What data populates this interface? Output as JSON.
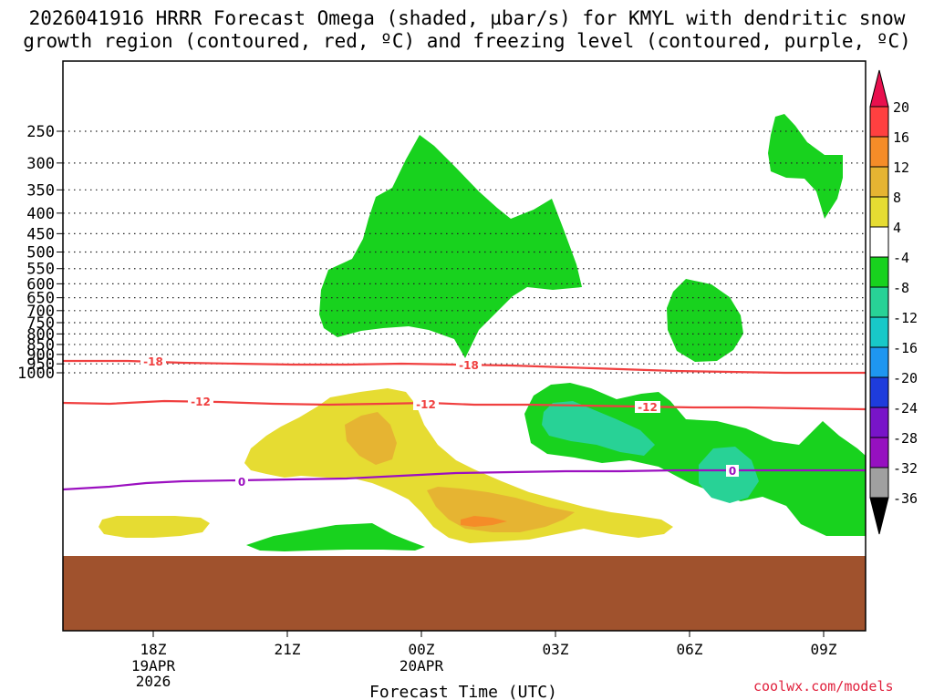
{
  "title_line1": "2026041916 HRRR Forecast Omega (shaded, µbar/s) for KMYL with dendritic snow",
  "title_line2": "growth region (contoured, red, ºC) and freezing level (contoured, purple, ºC)",
  "credit": "coolwx.com/models",
  "chart_data": {
    "type": "contour",
    "x_axis": {
      "label": "Forecast Time (UTC)",
      "ticks": [
        {
          "label": "18Z",
          "sub": [
            "19APR",
            "2026"
          ]
        },
        {
          "label": "21Z",
          "sub": []
        },
        {
          "label": "00Z",
          "sub": [
            "20APR"
          ]
        },
        {
          "label": "03Z",
          "sub": []
        },
        {
          "label": "06Z",
          "sub": []
        },
        {
          "label": "09Z",
          "sub": []
        }
      ]
    },
    "y_axis": {
      "ticks": [
        "250",
        "300",
        "350",
        "400",
        "450",
        "500",
        "550",
        "600",
        "650",
        "700",
        "750",
        "800",
        "850",
        "900",
        "950",
        "1000"
      ],
      "inverted": true,
      "grid": "dotted"
    },
    "colorbar": {
      "labels": [
        "20",
        "16",
        "12",
        "8",
        "4",
        "-4",
        "-8",
        "-12",
        "-16",
        "-20",
        "-24",
        "-28",
        "-32",
        "-36"
      ],
      "colors": [
        "#e8104e",
        "#ff4040",
        "#f58c28",
        "#e6b432",
        "#e6dc32",
        "#ffffff",
        "#18d21e",
        "#28d296",
        "#18c8c8",
        "#1e96f0",
        "#1e3cdc",
        "#7814c8",
        "#9610c0",
        "#a0a0a0",
        "#000000"
      ]
    },
    "temperature_contours": [
      {
        "value": "-18",
        "color": "#f04040"
      },
      {
        "value": "-12",
        "color": "#f04040"
      },
      {
        "value": "0",
        "color": "#9b10c0"
      }
    ],
    "colors": {
      "terrain": "#a0522d",
      "snow_growth_contour": "#f04040",
      "freezing_level": "#9b10c0",
      "green": "#18d21e",
      "cyan": "#28d296",
      "yellow": "#e6dc32",
      "orange": "#e6b432",
      "dark_orange": "#f58c28"
    }
  }
}
